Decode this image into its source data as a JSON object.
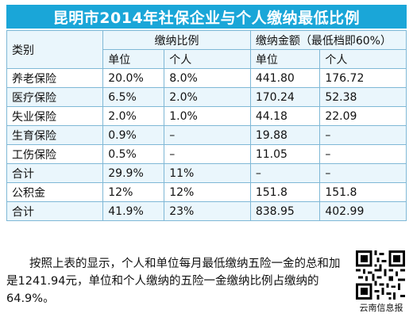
{
  "title": "昆明市2014年社保企业与个人缴纳最低比例",
  "header": {
    "category": "类别",
    "rate_group": "缴纳比例",
    "amount_group": "缴纳金额（最低档即60%）",
    "unit": "单位",
    "individual": "个人"
  },
  "rows": [
    {
      "label": "养老保险",
      "unit_rate": "20.0%",
      "ind_rate": "8.0%",
      "unit_amt": "441.80",
      "ind_amt": "176.72"
    },
    {
      "label": "医疗保险",
      "unit_rate": "6.5%",
      "ind_rate": "2.0%",
      "unit_amt": "170.24",
      "ind_amt": "52.38"
    },
    {
      "label": "失业保险",
      "unit_rate": "2.0%",
      "ind_rate": "1.0%",
      "unit_amt": "44.18",
      "ind_amt": "22.09"
    },
    {
      "label": "生育保险",
      "unit_rate": "0.9%",
      "ind_rate": "–",
      "unit_amt": "19.88",
      "ind_amt": "–"
    },
    {
      "label": "工伤保险",
      "unit_rate": "0.5%",
      "ind_rate": "–",
      "unit_amt": "11.05",
      "ind_amt": "–"
    },
    {
      "label": "合计",
      "unit_rate": "29.9%",
      "ind_rate": "11%",
      "unit_amt": "–",
      "ind_amt": "–"
    },
    {
      "label": "公积金",
      "unit_rate": "12%",
      "ind_rate": "12%",
      "unit_amt": "151.8",
      "ind_amt": "151.8"
    },
    {
      "label": "合计",
      "unit_rate": "41.9%",
      "ind_rate": "23%",
      "unit_amt": "838.95",
      "ind_amt": "402.99"
    }
  ],
  "footer_text": "按照上表的显示，个人和单位每月最低缴纳五险一金的总和加是1241.94元，单位和个人缴纳的五险一金缴纳比例占缴纳的64.9%。",
  "qr_caption": "云南信息报",
  "colors": {
    "title_bg": "#1aa6d8",
    "border": "#7fb8d6",
    "stripe": "#eaf6fc"
  }
}
